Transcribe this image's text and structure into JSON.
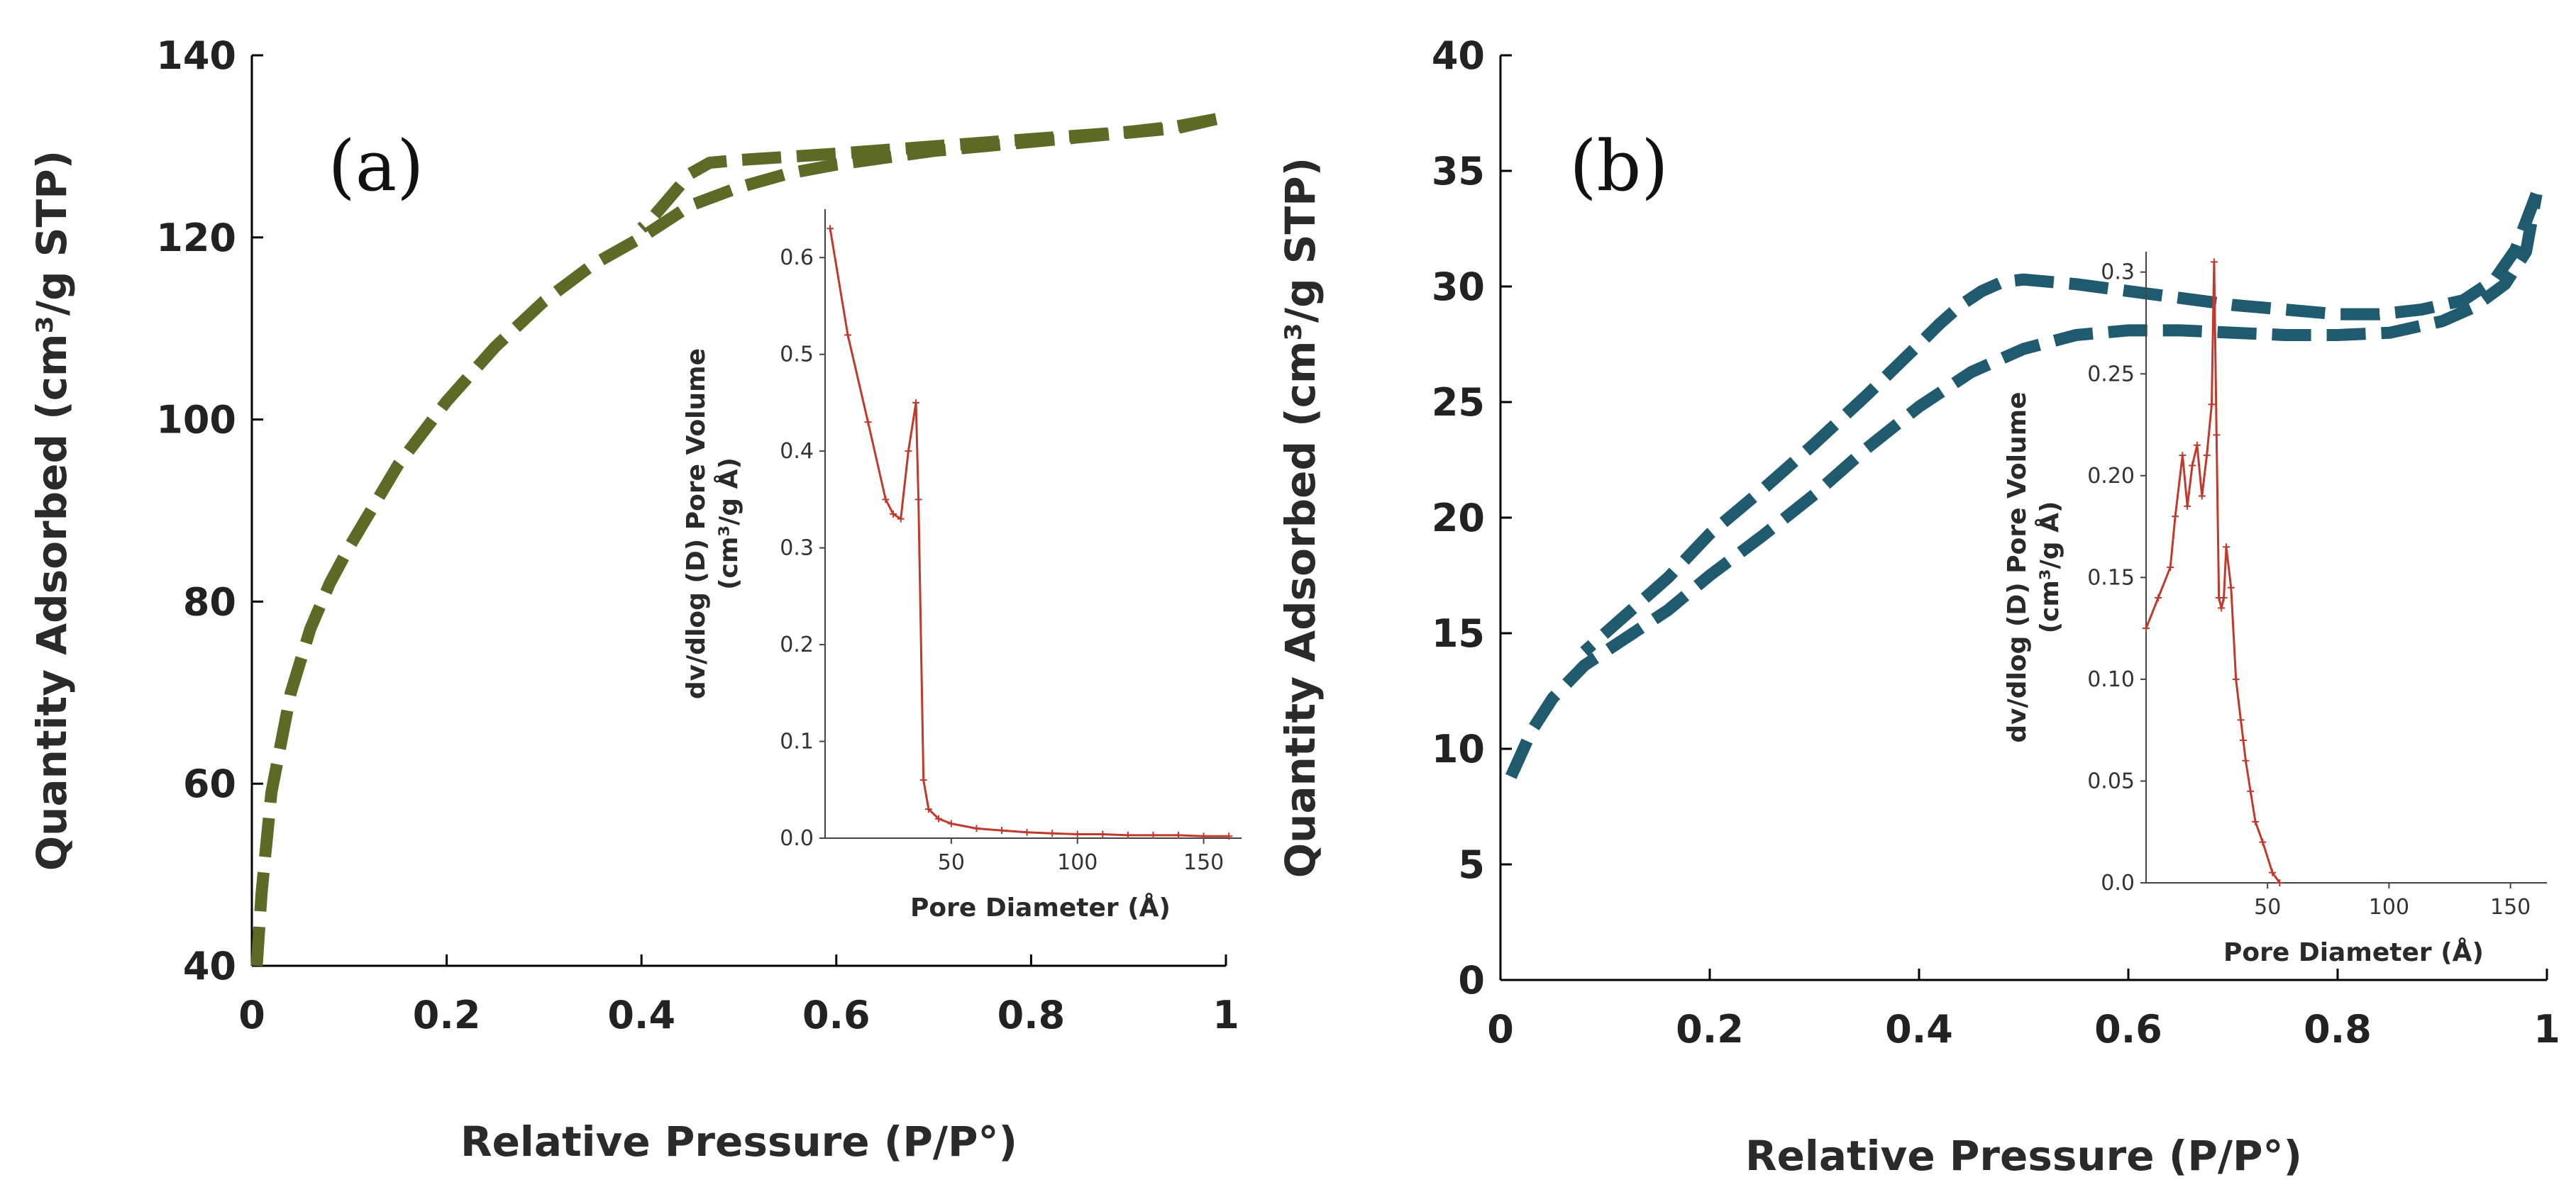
{
  "chart_data": [
    {
      "panel": "(a)",
      "type": "line",
      "xlabel": "Relative Pressure (P/P°)",
      "ylabel": "Quantity Adsorbed (cm³/g  STP)",
      "xlim": [
        0,
        1
      ],
      "ylim": [
        40,
        140
      ],
      "xticks": [
        "0",
        "0.2",
        "0.4",
        "0.6",
        "0.8",
        "1"
      ],
      "yticks": [
        "40",
        "60",
        "80",
        "100",
        "120",
        "140"
      ],
      "color": "#5b6b26",
      "series": [
        {
          "name": "adsorption",
          "x": [
            0.005,
            0.01,
            0.02,
            0.04,
            0.06,
            0.08,
            0.1,
            0.15,
            0.2,
            0.25,
            0.3,
            0.35,
            0.4,
            0.45,
            0.5,
            0.55,
            0.6,
            0.7,
            0.8,
            0.9,
            0.95,
            0.99
          ],
          "y": [
            40,
            48,
            59,
            70,
            77,
            82,
            86,
            95,
            102,
            108,
            113,
            117,
            120,
            123.5,
            125.5,
            127,
            128,
            129.5,
            130.5,
            131.5,
            132,
            133
          ]
        },
        {
          "name": "desorption",
          "x": [
            0.99,
            0.95,
            0.9,
            0.8,
            0.7,
            0.6,
            0.5,
            0.47,
            0.45,
            0.43,
            0.41,
            0.4
          ],
          "y": [
            133,
            132.2,
            131.6,
            130.8,
            130,
            129.2,
            128.5,
            128.2,
            127,
            124.5,
            122,
            121
          ]
        }
      ],
      "inset": {
        "type": "line",
        "xlabel": "Pore Diameter (Å)",
        "ylabel": "dv/dlog (D) Pore Volume (cm³/g Å)",
        "ylabel_lines": [
          "dv/dlog (D) Pore Volume",
          "(cm³/g Å)"
        ],
        "xlim": [
          0,
          165
        ],
        "ylim": [
          0,
          0.65
        ],
        "xticks": [
          50,
          100,
          150
        ],
        "yticks": [
          "0.0",
          "0.1",
          "0.2",
          "0.3",
          "0.4",
          "0.5",
          "0.6"
        ],
        "color": "#c0392b",
        "x": [
          2,
          9,
          17,
          24,
          27,
          30,
          33,
          36,
          37,
          39,
          41,
          45,
          50,
          60,
          70,
          80,
          90,
          100,
          110,
          120,
          130,
          140,
          150,
          160
        ],
        "y": [
          0.63,
          0.52,
          0.43,
          0.35,
          0.335,
          0.33,
          0.4,
          0.45,
          0.35,
          0.06,
          0.03,
          0.02,
          0.015,
          0.01,
          0.008,
          0.006,
          0.005,
          0.004,
          0.004,
          0.003,
          0.003,
          0.003,
          0.002,
          0.002
        ]
      }
    },
    {
      "panel": "(b)",
      "type": "line",
      "xlabel": "Relative Pressure (P/P°)",
      "ylabel": "Quantity Adsorbed (cm³/g  STP)",
      "xlim": [
        0,
        1
      ],
      "ylim": [
        0,
        40
      ],
      "xticks": [
        "0",
        "0.2",
        "0.4",
        "0.6",
        "0.8",
        "1"
      ],
      "yticks": [
        "0",
        "5",
        "10",
        "15",
        "20",
        "25",
        "30",
        "35",
        "40"
      ],
      "color": "#1f5a6e",
      "series": [
        {
          "name": "adsorption",
          "x": [
            0.01,
            0.03,
            0.05,
            0.08,
            0.12,
            0.16,
            0.2,
            0.25,
            0.3,
            0.35,
            0.4,
            0.45,
            0.5,
            0.55,
            0.6,
            0.65,
            0.7,
            0.75,
            0.8,
            0.85,
            0.9,
            0.93,
            0.96,
            0.98,
            0.99
          ],
          "y": [
            8.8,
            10.8,
            12.2,
            13.6,
            14.8,
            16,
            17.5,
            19.2,
            21,
            23,
            24.8,
            26.3,
            27.3,
            27.9,
            28.1,
            28.1,
            28,
            27.9,
            27.9,
            28,
            28.5,
            29.1,
            30.1,
            31.5,
            34
          ]
        },
        {
          "name": "desorption",
          "x": [
            0.99,
            0.97,
            0.95,
            0.92,
            0.88,
            0.84,
            0.8,
            0.75,
            0.7,
            0.65,
            0.6,
            0.55,
            0.5,
            0.48,
            0.46,
            0.44,
            0.42,
            0.4,
            0.35,
            0.3,
            0.25,
            0.2,
            0.16,
            0.12,
            0.08
          ],
          "y": [
            34,
            31.6,
            30.3,
            29.4,
            29,
            28.8,
            28.8,
            29,
            29.2,
            29.5,
            29.8,
            30.1,
            30.3,
            30.2,
            29.8,
            29.2,
            28.4,
            27.5,
            25.3,
            23.2,
            21.2,
            19.3,
            17.4,
            15.8,
            14.2
          ]
        }
      ],
      "inset": {
        "type": "line",
        "xlabel": "Pore Diameter (Å)",
        "ylabel": "dv/dlog (D) Pore Volume (cm³/g Å)",
        "ylabel_lines": [
          "dv/dlog (D) Pore Volume",
          "(cm³/g Å)"
        ],
        "xlim": [
          0,
          165
        ],
        "ylim": [
          0,
          0.31
        ],
        "xticks": [
          50,
          100,
          150
        ],
        "yticks": [
          "0.0",
          "0.05",
          "0.10",
          "0.15",
          "0.20",
          "0.25",
          "0.3"
        ],
        "color": "#c0392b",
        "x": [
          0,
          5,
          10,
          12,
          15,
          17,
          19,
          21,
          23,
          25,
          27,
          28,
          29,
          30,
          31,
          32,
          33,
          35,
          37,
          39,
          40,
          41,
          43,
          45,
          48,
          52,
          55
        ],
        "y": [
          0.125,
          0.14,
          0.155,
          0.18,
          0.21,
          0.185,
          0.205,
          0.215,
          0.19,
          0.21,
          0.235,
          0.305,
          0.22,
          0.14,
          0.135,
          0.14,
          0.165,
          0.145,
          0.1,
          0.08,
          0.07,
          0.06,
          0.045,
          0.03,
          0.02,
          0.005,
          0.0
        ]
      }
    }
  ]
}
